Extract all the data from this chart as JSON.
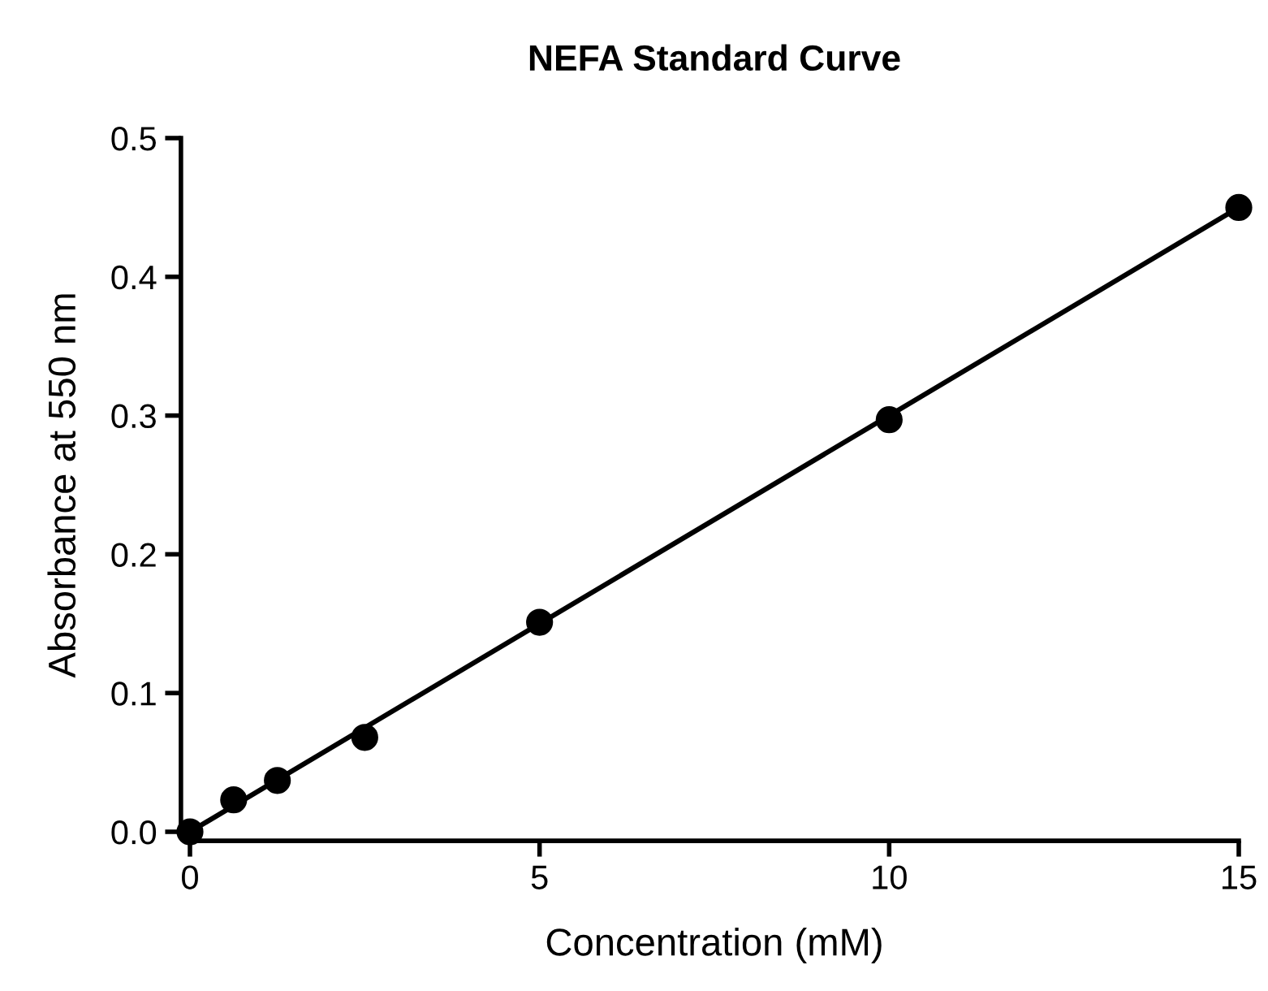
{
  "chart_data": {
    "type": "scatter",
    "title": "NEFA Standard Curve",
    "xlabel": "Concentration (mM)",
    "ylabel": "Absorbance at 550 nm",
    "series": [
      {
        "color": "#000000",
        "x": [
          0,
          0.625,
          1.25,
          2.5,
          5,
          10,
          15
        ],
        "values": [
          0.0,
          0.023,
          0.037,
          0.068,
          0.151,
          0.297,
          0.45
        ],
        "marker": "circle"
      },
      {
        "type": "line",
        "color": "#000000",
        "x": [
          0,
          15
        ],
        "values": [
          0.0,
          0.45
        ],
        "line_style": "solid",
        "marker": "none"
      }
    ],
    "xlim": [
      0,
      15
    ],
    "xticks": [
      0,
      5,
      10,
      15
    ],
    "ylim": [
      0,
      0.5
    ],
    "yticks": [
      {
        "value": 0,
        "label": "0.0"
      },
      0.1,
      0.2,
      0.3,
      0.4,
      0.5
    ],
    "grid": false,
    "legend": false
  }
}
